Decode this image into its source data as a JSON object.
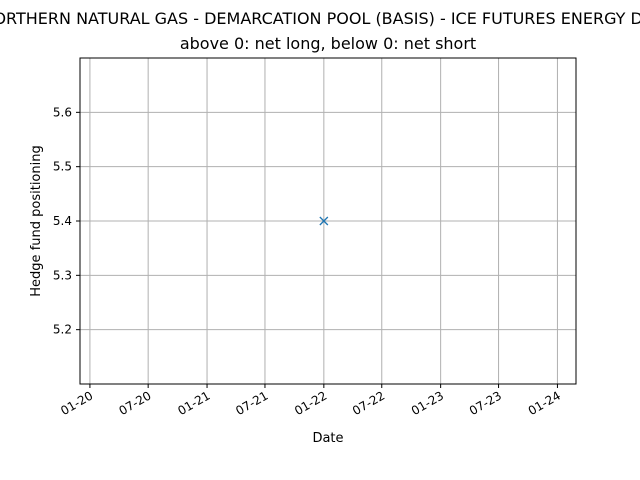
{
  "chart_data": {
    "type": "scatter",
    "title": "NORTHERN NATURAL GAS - DEMARCATION POOL (BASIS) - ICE FUTURES ENERGY DIV",
    "subtitle": "above 0: net long, below 0: net short",
    "xlabel": "Date",
    "ylabel": "Hedge fund positioning",
    "xlim": [
      "2019-12-01",
      "2024-02-28"
    ],
    "ylim": [
      5.1,
      5.7
    ],
    "xticks": [
      {
        "date": "2020-01-01",
        "label": "01-20"
      },
      {
        "date": "2020-07-01",
        "label": "07-20"
      },
      {
        "date": "2021-01-01",
        "label": "01-21"
      },
      {
        "date": "2021-07-01",
        "label": "07-21"
      },
      {
        "date": "2022-01-01",
        "label": "01-22"
      },
      {
        "date": "2022-07-01",
        "label": "07-22"
      },
      {
        "date": "2023-01-01",
        "label": "01-23"
      },
      {
        "date": "2023-07-01",
        "label": "07-23"
      },
      {
        "date": "2024-01-01",
        "label": "01-24"
      }
    ],
    "yticks": [
      5.2,
      5.3,
      5.4,
      5.5,
      5.6
    ],
    "grid": true,
    "marker": "x",
    "series": [
      {
        "color": "#1f77b4",
        "points": [
          {
            "x": "2022-01-01",
            "y": 5.4
          }
        ]
      }
    ]
  }
}
